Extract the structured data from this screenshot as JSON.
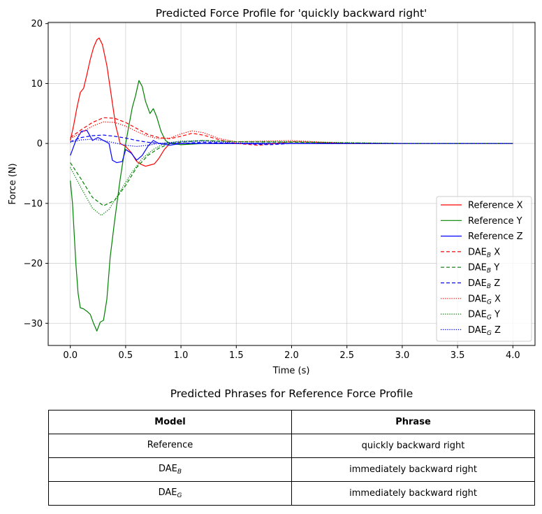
{
  "chart_data": {
    "type": "line",
    "title": "Predicted Force Profile for 'quickly backward right'",
    "xlabel": "Time (s)",
    "ylabel": "Force (N)",
    "xlim": [
      -0.2,
      4.2
    ],
    "ylim": [
      -33.7,
      20.2
    ],
    "xticks": [
      0.0,
      0.5,
      1.0,
      1.5,
      2.0,
      2.5,
      3.0,
      3.5,
      4.0
    ],
    "xtick_labels": [
      "0.0",
      "0.5",
      "1.0",
      "1.5",
      "2.0",
      "2.5",
      "3.0",
      "3.5",
      "4.0"
    ],
    "yticks": [
      -30,
      -20,
      -10,
      0,
      10,
      20
    ],
    "ytick_labels": [
      "−30",
      "−20",
      "−10",
      "0",
      "10",
      "20"
    ],
    "grid": true,
    "legend_position": "lower-right",
    "series": [
      {
        "name": "Reference X",
        "base": "Reference X",
        "sub": "",
        "color": "#ff0000",
        "style": "solid",
        "points": [
          [
            0,
            0.5
          ],
          [
            0.03,
            3
          ],
          [
            0.06,
            6
          ],
          [
            0.09,
            8.5
          ],
          [
            0.12,
            9.2
          ],
          [
            0.15,
            11.5
          ],
          [
            0.18,
            14
          ],
          [
            0.21,
            16
          ],
          [
            0.24,
            17.3
          ],
          [
            0.26,
            17.6
          ],
          [
            0.29,
            16.5
          ],
          [
            0.33,
            13
          ],
          [
            0.37,
            8
          ],
          [
            0.41,
            3
          ],
          [
            0.45,
            0
          ],
          [
            0.5,
            -0.5
          ],
          [
            0.55,
            -1.5
          ],
          [
            0.6,
            -3
          ],
          [
            0.64,
            -3.5
          ],
          [
            0.68,
            -3.8
          ],
          [
            0.72,
            -3.6
          ],
          [
            0.76,
            -3.4
          ],
          [
            0.8,
            -2.5
          ],
          [
            0.85,
            -1
          ],
          [
            0.9,
            0
          ],
          [
            1.0,
            0
          ],
          [
            1.2,
            0
          ],
          [
            1.5,
            0
          ],
          [
            2.0,
            0
          ],
          [
            4.0,
            0
          ]
        ]
      },
      {
        "name": "Reference Y",
        "base": "Reference Y",
        "sub": "",
        "color": "#008000",
        "style": "solid",
        "points": [
          [
            0,
            -6.2
          ],
          [
            0.02,
            -10
          ],
          [
            0.05,
            -20
          ],
          [
            0.07,
            -25
          ],
          [
            0.09,
            -27.4
          ],
          [
            0.12,
            -27.6
          ],
          [
            0.15,
            -28
          ],
          [
            0.18,
            -28.5
          ],
          [
            0.21,
            -30
          ],
          [
            0.24,
            -31.3
          ],
          [
            0.27,
            -29.8
          ],
          [
            0.3,
            -29.5
          ],
          [
            0.33,
            -26
          ],
          [
            0.36,
            -19
          ],
          [
            0.4,
            -13
          ],
          [
            0.45,
            -6
          ],
          [
            0.5,
            0
          ],
          [
            0.53,
            3
          ],
          [
            0.56,
            6
          ],
          [
            0.59,
            8
          ],
          [
            0.62,
            10.5
          ],
          [
            0.65,
            9.5
          ],
          [
            0.68,
            7
          ],
          [
            0.72,
            5
          ],
          [
            0.75,
            5.8
          ],
          [
            0.78,
            4.5
          ],
          [
            0.82,
            2
          ],
          [
            0.86,
            0.5
          ],
          [
            0.9,
            0
          ],
          [
            1.0,
            -0.2
          ],
          [
            1.2,
            0
          ],
          [
            2.0,
            0
          ],
          [
            4.0,
            0
          ]
        ]
      },
      {
        "name": "Reference Z",
        "base": "Reference Z",
        "sub": "",
        "color": "#0000ff",
        "style": "solid",
        "points": [
          [
            0,
            -2
          ],
          [
            0.05,
            0.5
          ],
          [
            0.1,
            2
          ],
          [
            0.15,
            2.2
          ],
          [
            0.2,
            0.5
          ],
          [
            0.25,
            1
          ],
          [
            0.3,
            0.5
          ],
          [
            0.35,
            0
          ],
          [
            0.38,
            -2.8
          ],
          [
            0.42,
            -3.2
          ],
          [
            0.47,
            -3
          ],
          [
            0.5,
            -1
          ],
          [
            0.55,
            -1.6
          ],
          [
            0.6,
            -2.8
          ],
          [
            0.65,
            -2
          ],
          [
            0.7,
            -0.5
          ],
          [
            0.75,
            0.5
          ],
          [
            0.8,
            0
          ],
          [
            0.9,
            -0.3
          ],
          [
            1.0,
            0
          ],
          [
            1.3,
            0
          ],
          [
            2.0,
            0
          ],
          [
            4.0,
            0
          ]
        ]
      },
      {
        "name": "DAE_B X",
        "base": "DAE",
        "sub": "B",
        "suffix": " X",
        "color": "#ff0000",
        "style": "dashed",
        "points": [
          [
            0,
            1
          ],
          [
            0.1,
            2.3
          ],
          [
            0.2,
            3.5
          ],
          [
            0.3,
            4.3
          ],
          [
            0.4,
            4.2
          ],
          [
            0.5,
            3.5
          ],
          [
            0.6,
            2.5
          ],
          [
            0.7,
            1.5
          ],
          [
            0.8,
            1
          ],
          [
            0.9,
            0.8
          ],
          [
            1.0,
            1.2
          ],
          [
            1.1,
            1.7
          ],
          [
            1.2,
            1.4
          ],
          [
            1.35,
            0.6
          ],
          [
            1.5,
            0
          ],
          [
            1.7,
            -0.3
          ],
          [
            2.0,
            0.3
          ],
          [
            2.2,
            0.2
          ],
          [
            2.5,
            0
          ],
          [
            3.0,
            0
          ],
          [
            4.0,
            0
          ]
        ]
      },
      {
        "name": "DAE_B Y",
        "base": "DAE",
        "sub": "B",
        "suffix": " Y",
        "color": "#008000",
        "style": "dashed",
        "points": [
          [
            0,
            -3.2
          ],
          [
            0.1,
            -6
          ],
          [
            0.2,
            -9
          ],
          [
            0.3,
            -10.4
          ],
          [
            0.4,
            -9.5
          ],
          [
            0.5,
            -7
          ],
          [
            0.6,
            -4
          ],
          [
            0.7,
            -2
          ],
          [
            0.8,
            -0.8
          ],
          [
            0.9,
            0
          ],
          [
            1.0,
            0.2
          ],
          [
            1.2,
            0.5
          ],
          [
            1.5,
            0.3
          ],
          [
            2.0,
            0.2
          ],
          [
            3.0,
            0
          ],
          [
            4.0,
            0
          ]
        ]
      },
      {
        "name": "DAE_B Z",
        "base": "DAE",
        "sub": "B",
        "suffix": " Z",
        "color": "#0000ff",
        "style": "dashed",
        "points": [
          [
            0,
            0.3
          ],
          [
            0.1,
            1
          ],
          [
            0.2,
            1.3
          ],
          [
            0.3,
            1.4
          ],
          [
            0.4,
            1.2
          ],
          [
            0.5,
            0.9
          ],
          [
            0.6,
            0.5
          ],
          [
            0.7,
            0.2
          ],
          [
            0.8,
            0
          ],
          [
            1.0,
            0
          ],
          [
            1.2,
            0.2
          ],
          [
            1.5,
            0
          ],
          [
            1.8,
            -0.2
          ],
          [
            2.0,
            0
          ],
          [
            4.0,
            0
          ]
        ]
      },
      {
        "name": "DAE_G X",
        "base": "DAE",
        "sub": "G",
        "suffix": " X",
        "color": "#ff0000",
        "style": "dotted",
        "points": [
          [
            0,
            0.8
          ],
          [
            0.1,
            1.8
          ],
          [
            0.2,
            2.9
          ],
          [
            0.3,
            3.6
          ],
          [
            0.4,
            3.5
          ],
          [
            0.5,
            2.9
          ],
          [
            0.6,
            2
          ],
          [
            0.7,
            1.2
          ],
          [
            0.8,
            0.8
          ],
          [
            0.9,
            0.9
          ],
          [
            1.0,
            1.6
          ],
          [
            1.1,
            2.1
          ],
          [
            1.2,
            1.8
          ],
          [
            1.35,
            0.8
          ],
          [
            1.5,
            0.3
          ],
          [
            2.0,
            0.5
          ],
          [
            2.5,
            0
          ],
          [
            4.0,
            0
          ]
        ]
      },
      {
        "name": "DAE_G Y",
        "base": "DAE",
        "sub": "G",
        "suffix": " Y",
        "color": "#008000",
        "style": "dotted",
        "points": [
          [
            0,
            -4
          ],
          [
            0.1,
            -7.5
          ],
          [
            0.2,
            -10.8
          ],
          [
            0.28,
            -12
          ],
          [
            0.35,
            -11
          ],
          [
            0.45,
            -8
          ],
          [
            0.55,
            -5
          ],
          [
            0.65,
            -2.5
          ],
          [
            0.75,
            -1
          ],
          [
            0.85,
            0
          ],
          [
            1.0,
            0.4
          ],
          [
            1.2,
            0.5
          ],
          [
            1.5,
            0.3
          ],
          [
            2.0,
            0.3
          ],
          [
            3.0,
            0
          ],
          [
            4.0,
            0
          ]
        ]
      },
      {
        "name": "DAE_G Z",
        "base": "DAE",
        "sub": "G",
        "suffix": " Z",
        "color": "#0000ff",
        "style": "dotted",
        "points": [
          [
            0,
            0.2
          ],
          [
            0.1,
            0.6
          ],
          [
            0.2,
            0.7
          ],
          [
            0.3,
            0.5
          ],
          [
            0.4,
            0.1
          ],
          [
            0.5,
            -0.3
          ],
          [
            0.6,
            -0.5
          ],
          [
            0.7,
            -0.3
          ],
          [
            0.8,
            0
          ],
          [
            1.0,
            0.3
          ],
          [
            1.2,
            0.4
          ],
          [
            1.5,
            0.1
          ],
          [
            2.0,
            0
          ],
          [
            4.0,
            0
          ]
        ]
      }
    ]
  },
  "table": {
    "title": "Predicted Phrases for Reference Force Profile",
    "header_model": "Model",
    "header_phrase": "Phrase",
    "rows": [
      {
        "model": "Reference",
        "model_sub": "",
        "phrase": "quickly backward right"
      },
      {
        "model": "DAE",
        "model_sub": "B",
        "phrase": "immediately backward right"
      },
      {
        "model": "DAE",
        "model_sub": "G",
        "phrase": "immediately backward right"
      }
    ]
  }
}
